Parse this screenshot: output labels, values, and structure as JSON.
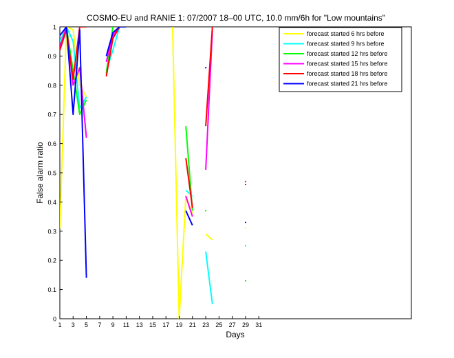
{
  "chart_data": {
    "type": "line",
    "title": "COSMO-EU and RANIE 1: 07/2007 18–00 UTC, 10.0 mm/6h for \"Low mountains\"",
    "xlabel": "Days",
    "ylabel": "False alarm ratio",
    "xlim": [
      1,
      54
    ],
    "ylim": [
      0,
      1
    ],
    "xticks": [
      1,
      3,
      5,
      7,
      9,
      11,
      13,
      15,
      17,
      19,
      21,
      23,
      25,
      27,
      29,
      31
    ],
    "yticks": [
      0,
      0.1,
      0.2,
      0.3,
      0.4,
      0.5,
      0.6,
      0.7,
      0.8,
      0.9,
      1
    ],
    "legend_position": "top-right",
    "series": [
      {
        "name": "forecast started 6 hrs before",
        "color": "#ffff00",
        "segments": [
          [
            [
              1,
              0.31
            ],
            [
              2,
              1.0
            ],
            [
              3,
              0.99
            ],
            [
              4,
              0.8
            ],
            [
              5,
              0.76
            ]
          ],
          [
            [
              18,
              1.0
            ],
            [
              19,
              0.0
            ],
            [
              20,
              0.42
            ],
            [
              21,
              0.36
            ]
          ],
          [
            [
              23,
              0.29
            ],
            [
              24,
              0.27
            ]
          ],
          [
            [
              29,
              0.31
            ]
          ]
        ]
      },
      {
        "name": "forecast started 9 hrs before",
        "color": "#00ffff",
        "segments": [
          [
            [
              1,
              0.95
            ],
            [
              2,
              1.0
            ],
            [
              3,
              0.95
            ],
            [
              4,
              0.72
            ],
            [
              5,
              0.76
            ]
          ],
          [
            [
              8,
              0.85
            ],
            [
              9,
              0.92
            ],
            [
              10,
              1.0
            ]
          ],
          [
            [
              20,
              0.44
            ],
            [
              21,
              0.42
            ]
          ],
          [
            [
              23,
              0.23
            ],
            [
              24,
              0.05
            ]
          ],
          [
            [
              29,
              0.25
            ]
          ]
        ]
      },
      {
        "name": "forecast started 12 hrs before",
        "color": "#00ff00",
        "segments": [
          [
            [
              1,
              0.93
            ],
            [
              2,
              1.0
            ],
            [
              3,
              0.85
            ],
            [
              4,
              0.7
            ],
            [
              5,
              0.75
            ]
          ],
          [
            [
              8,
              0.84
            ],
            [
              9,
              1.0
            ]
          ],
          [
            [
              20,
              0.66
            ],
            [
              21,
              0.37
            ]
          ],
          [
            [
              23,
              0.37
            ]
          ],
          [
            [
              29,
              0.13
            ]
          ]
        ]
      },
      {
        "name": "forecast started 15 hrs before",
        "color": "#ff00ff",
        "segments": [
          [
            [
              1,
              0.93
            ],
            [
              2,
              1.0
            ],
            [
              3,
              0.8
            ],
            [
              4,
              0.86
            ],
            [
              5,
              0.62
            ]
          ],
          [
            [
              8,
              0.88
            ],
            [
              9,
              0.97
            ],
            [
              10,
              1.0
            ]
          ],
          [
            [
              20,
              0.42
            ],
            [
              21,
              0.35
            ]
          ],
          [
            [
              23,
              0.51
            ],
            [
              24,
              0.99
            ]
          ],
          [
            [
              29,
              0.47
            ]
          ]
        ]
      },
      {
        "name": "forecast started 18 hrs before",
        "color": "#ff0000",
        "segments": [
          [
            [
              1,
              0.92
            ],
            [
              2,
              0.99
            ],
            [
              3,
              0.82
            ],
            [
              4,
              1.0
            ],
            [
              5,
              1.0
            ]
          ],
          [
            [
              8,
              0.83
            ],
            [
              9,
              0.96
            ],
            [
              10,
              1.0
            ]
          ],
          [
            [
              20,
              0.55
            ],
            [
              21,
              0.38
            ]
          ],
          [
            [
              23,
              0.66
            ],
            [
              24,
              1.0
            ]
          ],
          [
            [
              29,
              0.46
            ]
          ]
        ]
      },
      {
        "name": "forecast started 21 hrs before",
        "color": "#0000ff",
        "segments": [
          [
            [
              1,
              0.97
            ],
            [
              2,
              1.0
            ],
            [
              3,
              0.7
            ],
            [
              4,
              0.99
            ],
            [
              5,
              0.14
            ]
          ],
          [
            [
              8,
              0.9
            ],
            [
              9,
              0.98
            ],
            [
              10,
              1.0
            ],
            [
              11,
              1.0
            ]
          ],
          [
            [
              20,
              0.37
            ],
            [
              21,
              0.32
            ]
          ],
          [
            [
              23,
              0.86
            ]
          ],
          [
            [
              29,
              0.33
            ]
          ]
        ]
      }
    ]
  }
}
